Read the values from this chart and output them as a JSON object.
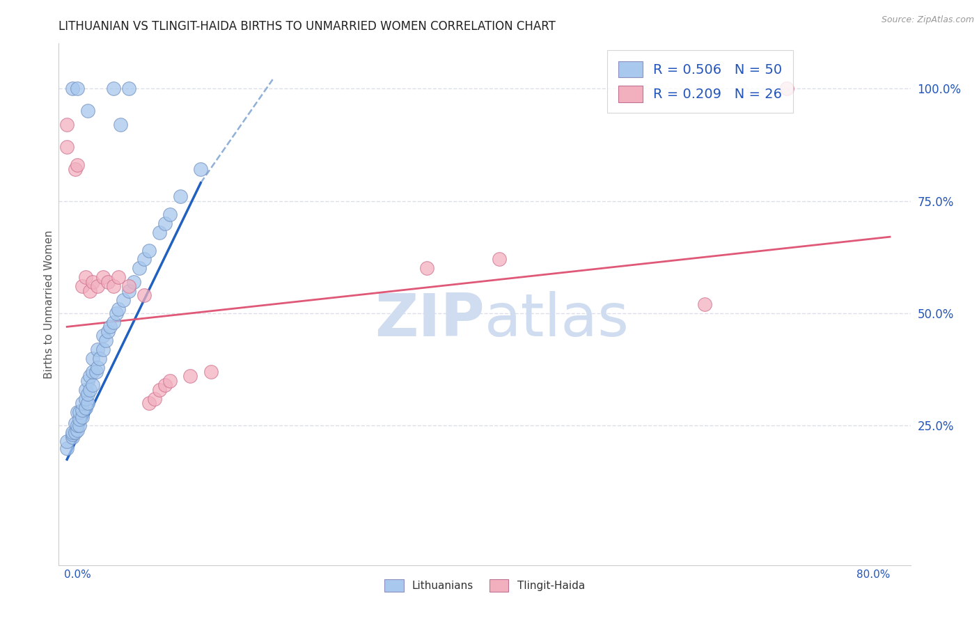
{
  "title": "LITHUANIAN VS TLINGIT-HAIDA BIRTHS TO UNMARRIED WOMEN CORRELATION CHART",
  "source": "Source: ZipAtlas.com",
  "ylabel": "Births to Unmarried Women",
  "right_yticks": [
    "25.0%",
    "50.0%",
    "75.0%",
    "100.0%"
  ],
  "right_ytick_vals": [
    0.25,
    0.5,
    0.75,
    1.0
  ],
  "legend_blue_r": "R = 0.506",
  "legend_blue_n": "N = 50",
  "legend_pink_r": "R = 0.209",
  "legend_pink_n": "N = 26",
  "blue_color": "#a8c8ed",
  "pink_color": "#f2b0bf",
  "blue_line_color": "#2060c0",
  "pink_line_color": "#e05878",
  "dash_line_color": "#90b0d8",
  "legend_text_color": "#2255bb",
  "title_color": "#222222",
  "grid_color": "#d8dce8",
  "watermark_color": "#d0ddf0",
  "blue_scatter_x": [
    0.0,
    0.0,
    0.005,
    0.005,
    0.005,
    0.008,
    0.008,
    0.01,
    0.01,
    0.01,
    0.012,
    0.012,
    0.012,
    0.015,
    0.015,
    0.015,
    0.018,
    0.018,
    0.018,
    0.02,
    0.02,
    0.02,
    0.022,
    0.022,
    0.025,
    0.025,
    0.025,
    0.028,
    0.03,
    0.03,
    0.032,
    0.035,
    0.035,
    0.038,
    0.04,
    0.042,
    0.045,
    0.048,
    0.05,
    0.055,
    0.06,
    0.065,
    0.07,
    0.075,
    0.08,
    0.09,
    0.095,
    0.1,
    0.11,
    0.13
  ],
  "blue_scatter_y": [
    0.2,
    0.215,
    0.225,
    0.23,
    0.235,
    0.235,
    0.255,
    0.24,
    0.25,
    0.28,
    0.25,
    0.265,
    0.28,
    0.27,
    0.285,
    0.3,
    0.29,
    0.31,
    0.33,
    0.3,
    0.32,
    0.35,
    0.33,
    0.36,
    0.34,
    0.37,
    0.4,
    0.37,
    0.38,
    0.42,
    0.4,
    0.42,
    0.45,
    0.44,
    0.46,
    0.47,
    0.48,
    0.5,
    0.51,
    0.53,
    0.55,
    0.57,
    0.6,
    0.62,
    0.64,
    0.68,
    0.7,
    0.72,
    0.76,
    0.82
  ],
  "blue_outlier_x": [
    0.005,
    0.01,
    0.02,
    0.045,
    0.052,
    0.06
  ],
  "blue_outlier_y": [
    1.0,
    1.0,
    0.95,
    1.0,
    0.92,
    1.0
  ],
  "pink_scatter_x": [
    0.0,
    0.0,
    0.008,
    0.01,
    0.015,
    0.018,
    0.022,
    0.025,
    0.03,
    0.035,
    0.04,
    0.045,
    0.05,
    0.06,
    0.075,
    0.08,
    0.085,
    0.09,
    0.095,
    0.1,
    0.12,
    0.14,
    0.35,
    0.42,
    0.62,
    0.7
  ],
  "pink_scatter_y": [
    0.87,
    0.92,
    0.82,
    0.83,
    0.56,
    0.58,
    0.55,
    0.57,
    0.56,
    0.58,
    0.57,
    0.56,
    0.58,
    0.56,
    0.54,
    0.3,
    0.31,
    0.33,
    0.34,
    0.35,
    0.36,
    0.37,
    0.6,
    0.62,
    0.52,
    1.0
  ],
  "blue_line_x": [
    0.0,
    0.13
  ],
  "blue_line_y": [
    0.175,
    0.79
  ],
  "pink_line_x": [
    0.0,
    0.8
  ],
  "pink_line_y": [
    0.47,
    0.67
  ],
  "dash_line_x": [
    0.13,
    0.2
  ],
  "dash_line_y": [
    0.79,
    1.02
  ],
  "xmin": -0.008,
  "xmax": 0.82,
  "ymin": -0.06,
  "ymax": 1.1,
  "x_axis_left_label": "0.0%",
  "x_axis_right_label": "80.0%"
}
